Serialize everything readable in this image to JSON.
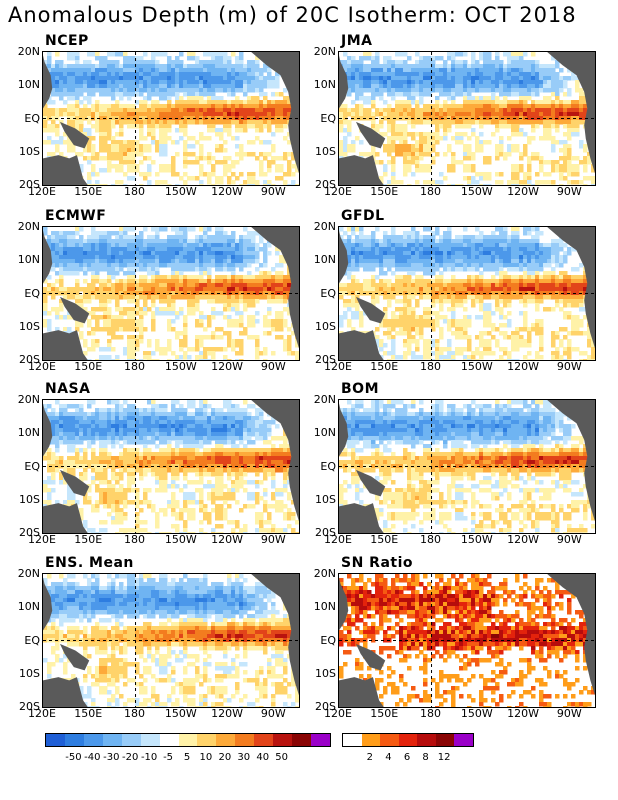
{
  "title": "Anomalous Depth (m) of 20C Isotherm: OCT 2018",
  "lat_labels": [
    "20N",
    "10N",
    "EQ",
    "10S",
    "20S"
  ],
  "lon_labels": [
    "120E",
    "150E",
    "180",
    "150W",
    "120W",
    "90W"
  ],
  "panels": [
    {
      "name": "NCEP",
      "kind": "anom",
      "title": "NCEP"
    },
    {
      "name": "JMA",
      "kind": "anom",
      "title": "JMA"
    },
    {
      "name": "ECMWF",
      "kind": "anom",
      "title": "ECMWF"
    },
    {
      "name": "GFDL",
      "kind": "anom",
      "title": "GFDL"
    },
    {
      "name": "NASA",
      "kind": "anom",
      "title": "NASA"
    },
    {
      "name": "BOM",
      "kind": "anom",
      "title": "BOM"
    },
    {
      "name": "ENS",
      "kind": "anom",
      "title": "ENS. Mean"
    },
    {
      "name": "SN",
      "kind": "sn",
      "title": "SN Ratio"
    }
  ],
  "colorbars": {
    "anomaly": {
      "colors": [
        "#1f5fd6",
        "#2e7de0",
        "#4c98ea",
        "#6fb4f2",
        "#98ccf8",
        "#c5e6fc",
        "#ffffff",
        "#fff2a8",
        "#ffd36a",
        "#fdaa3a",
        "#f37c1f",
        "#e2441a",
        "#b8130f",
        "#8a0505",
        "#9a00c8"
      ],
      "labels": [
        "-50",
        "-40",
        "-30",
        "-20",
        "-10",
        "-5",
        "5",
        "10",
        "20",
        "30",
        "40",
        "50"
      ]
    },
    "snratio": {
      "colors": [
        "#ffffff",
        "#ff9d1a",
        "#f55a12",
        "#e3230c",
        "#b60c0c",
        "#8a0505",
        "#9a00c8"
      ],
      "labels": [
        "2",
        "4",
        "6",
        "8",
        "12"
      ]
    }
  }
}
